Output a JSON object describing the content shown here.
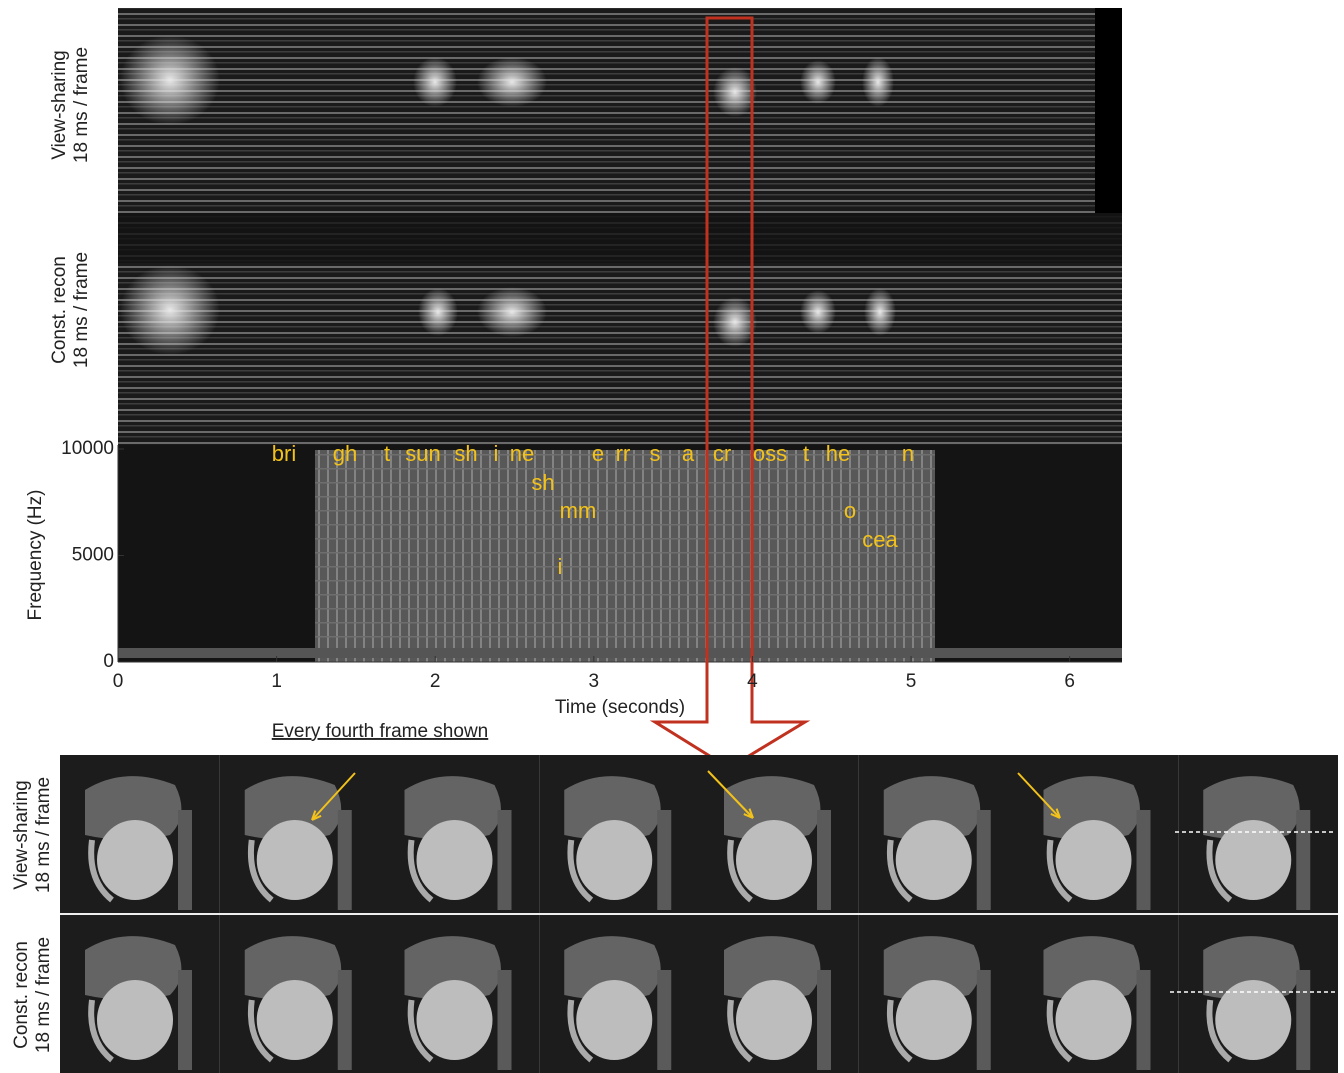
{
  "top_panels": [
    {
      "label_lines": [
        "View-sharing",
        "18 ms / frame"
      ]
    },
    {
      "label_lines": [
        "Const. recon",
        "18 ms / frame"
      ]
    }
  ],
  "spectrogram": {
    "y_label": "Frequency (Hz)",
    "x_label": "Time (seconds)",
    "xlim": [
      0,
      6.33
    ],
    "ylim": [
      0,
      10000
    ],
    "xticks": [
      0,
      1,
      2,
      3,
      4,
      5,
      6
    ],
    "yticks": [
      0,
      5000,
      10000
    ],
    "phonemes": [
      "bri",
      "gh",
      "t",
      "sun",
      "sh",
      "i",
      "ne",
      "sh",
      "mm",
      "i",
      "e",
      "rr",
      "s",
      "a",
      "cr",
      "oss",
      "t",
      "he",
      "n",
      "o",
      "cea"
    ]
  },
  "caption": "Every fourth frame shown",
  "bottom_rows": [
    {
      "label_lines": [
        "View-sharing",
        "18 ms / frame"
      ]
    },
    {
      "label_lines": [
        "Const. recon",
        "18 ms / frame"
      ]
    }
  ]
}
